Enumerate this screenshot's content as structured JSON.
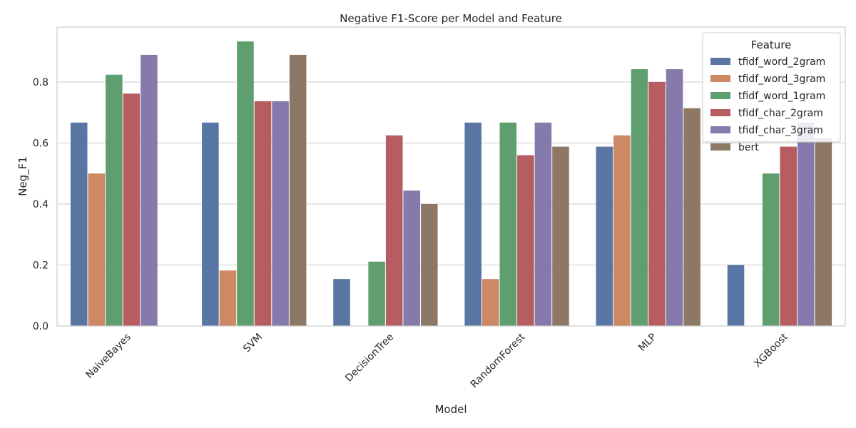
{
  "chart_data": {
    "type": "bar",
    "title": "Negative F1-Score per Model and Feature",
    "xlabel": "Model",
    "ylabel": "Neg_F1",
    "ylim": [
      0,
      0.98
    ],
    "yticks": [
      "0.0",
      "0.2",
      "0.4",
      "0.6",
      "0.8"
    ],
    "grid": true,
    "legend_title": "Feature",
    "legend_position": "top-right",
    "categories": [
      "NaiveBayes",
      "SVM",
      "DecisionTree",
      "RandomForest",
      "MLP",
      "XGBoost"
    ],
    "series": [
      {
        "name": "tfidf_word_2gram",
        "color": "#5875a4",
        "values": [
          0.667,
          0.667,
          0.154,
          0.667,
          0.588,
          0.2
        ]
      },
      {
        "name": "tfidf_word_3gram",
        "color": "#cc8963",
        "values": [
          0.5,
          0.182,
          0.0,
          0.154,
          0.625,
          0.0
        ]
      },
      {
        "name": "tfidf_word_1gram",
        "color": "#5f9e6e",
        "values": [
          0.824,
          0.933,
          0.211,
          0.667,
          0.842,
          0.5
        ]
      },
      {
        "name": "tfidf_char_2gram",
        "color": "#b55d60",
        "values": [
          0.762,
          0.737,
          0.625,
          0.56,
          0.8,
          0.588
        ]
      },
      {
        "name": "tfidf_char_3gram",
        "color": "#857aab",
        "values": [
          0.889,
          0.737,
          0.444,
          0.667,
          0.842,
          0.667
        ]
      },
      {
        "name": "bert",
        "color": "#8d7866",
        "values": [
          0.0,
          0.889,
          0.4,
          0.588,
          0.714,
          0.615
        ]
      }
    ]
  }
}
